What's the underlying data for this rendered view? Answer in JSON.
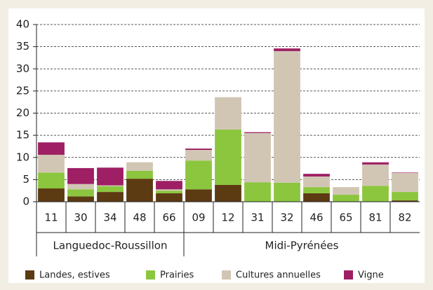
{
  "chart_data": {
    "type": "stacked_bar",
    "categories": [
      "11",
      "30",
      "34",
      "48",
      "66",
      "09",
      "12",
      "31",
      "32",
      "46",
      "65",
      "81",
      "82"
    ],
    "groups": [
      {
        "label": "Languedoc-Roussillon",
        "count": 5
      },
      {
        "label": "Midi-Pyrénées",
        "count": 8
      }
    ],
    "series": [
      {
        "name": "Landes, estives",
        "color": "#5c3a12",
        "values": [
          3.0,
          1.2,
          2.2,
          5.2,
          1.9,
          2.8,
          3.8,
          0,
          0,
          1.9,
          0,
          0,
          0.3
        ]
      },
      {
        "name": "Prairies",
        "color": "#8cc63f",
        "values": [
          3.6,
          1.6,
          1.3,
          1.8,
          0.6,
          6.5,
          12.5,
          4.4,
          4.3,
          1.4,
          1.6,
          3.6,
          1.9
        ]
      },
      {
        "name": "Cultures annuelles",
        "color": "#d1c6b4",
        "values": [
          4.0,
          1.2,
          0.2,
          1.9,
          0.3,
          2.4,
          7.3,
          11.1,
          29.7,
          2.4,
          1.7,
          4.8,
          4.3
        ]
      },
      {
        "name": "Vigne",
        "color": "#9e1f63",
        "values": [
          2.8,
          3.6,
          4.0,
          0,
          1.9,
          0.3,
          0,
          0.2,
          0.6,
          0.6,
          0,
          0.5,
          0.1
        ]
      }
    ],
    "ylim": [
      0,
      40
    ],
    "yticks": [
      0,
      5,
      10,
      15,
      20,
      25,
      30,
      35,
      40
    ],
    "grid": true
  }
}
